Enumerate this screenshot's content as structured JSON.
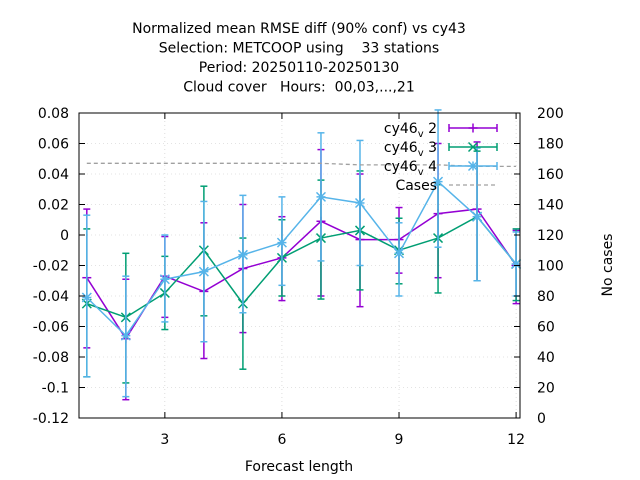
{
  "chart_data": {
    "type": "line",
    "title_lines": [
      "Normalized mean RMSE diff (90% conf) vs cy43",
      "Selection: METCOOP using    33 stations",
      "Period: 20250110-20250130",
      "Cloud cover   Hours:  00,03,...,21"
    ],
    "xlabel": "Forecast length",
    "ylabel_right": "No cases",
    "xlim": [
      0.8,
      12.1
    ],
    "ylim": [
      -0.12,
      0.08
    ],
    "y2lim": [
      0,
      200
    ],
    "x_ticks": [
      3,
      6,
      9,
      12
    ],
    "y_ticks": [
      "0.08",
      "0.06",
      "0.04",
      "0.02",
      "0",
      "-0.02",
      "-0.04",
      "-0.06",
      "-0.08",
      "-0.1",
      "-0.12"
    ],
    "y_tick_values": [
      0.08,
      0.06,
      0.04,
      0.02,
      0,
      -0.02,
      -0.04,
      -0.06,
      -0.08,
      -0.1,
      -0.12
    ],
    "y2_ticks": [
      "200",
      "180",
      "160",
      "140",
      "120",
      "100",
      "80",
      "60",
      "40",
      "20",
      "0"
    ],
    "y2_tick_values": [
      200,
      180,
      160,
      140,
      120,
      100,
      80,
      60,
      40,
      20,
      0
    ],
    "x": [
      1,
      2,
      3,
      4,
      5,
      6,
      7,
      8,
      9,
      10,
      11,
      12
    ],
    "series": [
      {
        "name": "cy46",
        "name_sub": "v",
        "name_suffix": "2",
        "color": "#9400d3",
        "marker": "plus",
        "values": [
          -0.028,
          -0.068,
          -0.027,
          -0.037,
          -0.022,
          -0.015,
          0.009,
          -0.003,
          -0.003,
          0.014,
          0.017,
          -0.02
        ],
        "err_low": [
          -0.074,
          -0.108,
          -0.054,
          -0.081,
          -0.064,
          -0.043,
          -0.04,
          -0.047,
          -0.025,
          -0.028,
          -0.03,
          -0.045
        ],
        "err_high": [
          0.017,
          -0.029,
          -0.001,
          0.008,
          0.02,
          0.012,
          0.056,
          0.04,
          0.018,
          0.06,
          0.061,
          0.003
        ]
      },
      {
        "name": "cy46",
        "name_sub": "v",
        "name_suffix": "3",
        "color": "#009e73",
        "marker": "x",
        "values": [
          -0.045,
          -0.054,
          -0.038,
          -0.01,
          -0.045,
          -0.015,
          -0.002,
          0.003,
          -0.01,
          -0.002,
          0.012,
          -0.019
        ],
        "err_low": [
          -0.093,
          -0.097,
          -0.062,
          -0.053,
          -0.088,
          -0.04,
          -0.042,
          -0.036,
          -0.032,
          -0.038,
          -0.03,
          -0.043
        ],
        "err_high": [
          0.004,
          -0.012,
          -0.014,
          0.032,
          -0.002,
          0.01,
          0.036,
          0.042,
          0.011,
          0.033,
          0.055,
          0.004
        ]
      },
      {
        "name": "cy46",
        "name_sub": "v",
        "name_suffix": "4",
        "color": "#56b4e9",
        "marker": "star",
        "values": [
          -0.041,
          -0.066,
          -0.029,
          -0.024,
          -0.013,
          -0.005,
          0.025,
          0.021,
          -0.012,
          0.035,
          0.012,
          -0.019
        ],
        "err_low": [
          -0.093,
          -0.106,
          -0.057,
          -0.07,
          -0.051,
          -0.033,
          -0.017,
          -0.02,
          -0.04,
          -0.008,
          -0.03,
          -0.04
        ],
        "err_high": [
          0.013,
          -0.027,
          0.0,
          0.022,
          0.026,
          0.025,
          0.067,
          0.062,
          0.008,
          0.082,
          0.057,
          0.002
        ]
      },
      {
        "name": "Cases",
        "color": "#a0a0a0",
        "dashed": true,
        "axis": "right",
        "values": [
          167,
          167,
          167,
          167,
          167,
          167,
          167,
          166,
          166,
          166,
          165,
          165
        ]
      }
    ]
  }
}
